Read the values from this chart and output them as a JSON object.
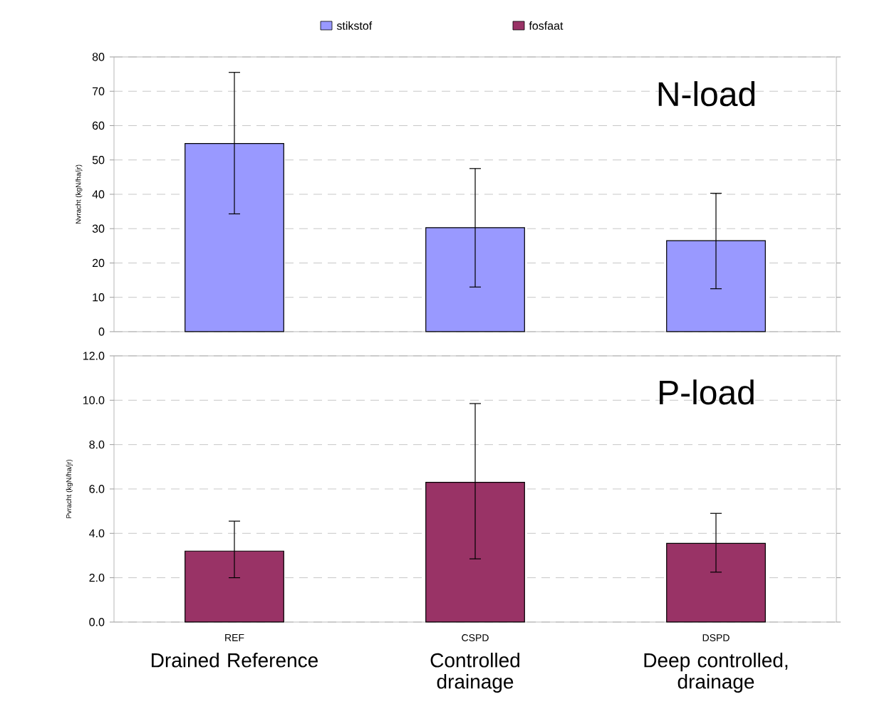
{
  "chart_data": [
    {
      "type": "bar",
      "ylabel": "Nvracht (kgN/ha/jr)",
      "categories": [
        null,
        null,
        null
      ],
      "series": [
        {
          "name": "stikstof",
          "color": "#9999ff",
          "values": [
            54.8,
            30.3,
            26.5
          ],
          "errors": [
            [
              34.3,
              75.5
            ],
            [
              13.0,
              47.5
            ],
            [
              12.5,
              40.3
            ]
          ]
        }
      ],
      "ylim": [
        0,
        80
      ],
      "yticks": [
        0,
        10,
        20,
        30,
        40,
        50,
        60,
        70,
        80
      ],
      "grid": "y",
      "legend": "top",
      "tick_labels": "y",
      "annotations": [
        "N-load"
      ]
    },
    {
      "type": "bar",
      "ylabel": "Pvracht (kgN/ha/jr)",
      "categories": [
        "REF",
        "CSPD",
        "DSPD"
      ],
      "series": [
        {
          "name": "fosfaat",
          "color": "#993366",
          "values": [
            3.2,
            6.3,
            3.55
          ],
          "errors": [
            [
              2.0,
              4.55
            ],
            [
              2.85,
              9.85
            ],
            [
              2.25,
              4.9
            ]
          ]
        }
      ],
      "ylim": [
        0,
        12
      ],
      "yticks": [
        {
          "value": 0,
          "label": "0.0"
        },
        {
          "value": 2,
          "label": "2.0"
        },
        {
          "value": 4,
          "label": "4.0"
        },
        {
          "value": 6,
          "label": "6.0"
        },
        {
          "value": 8,
          "label": "8.0"
        },
        {
          "value": 10,
          "label": "10.0"
        },
        {
          "value": 12,
          "label": "12.0"
        }
      ],
      "grid": "y",
      "legend": "top",
      "annotations": [
        "P-load",
        "Drained Reference",
        "Controlled drainage",
        "Deep controlled, drainage"
      ]
    }
  ]
}
